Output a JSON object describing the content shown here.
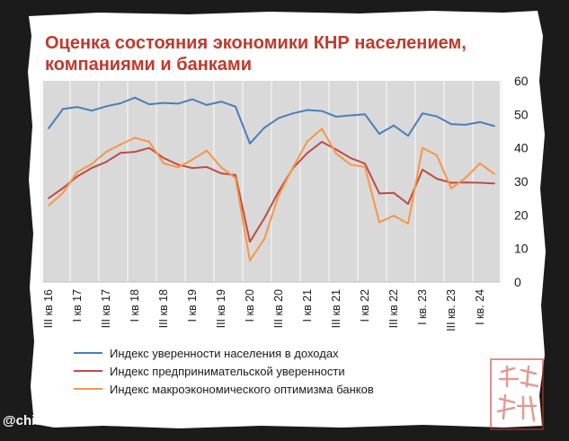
{
  "title": "Оценка состояния экономики КНР населением,\nкомпаниями и банками",
  "watermark": "@chinogram",
  "colors": {
    "background": "#d9d9d9",
    "grid": "#f2f2f2",
    "title": "#c0392b",
    "seal": "#c0392b"
  },
  "chart_data": {
    "type": "line",
    "xlabel": "",
    "ylabel": "",
    "ylim": [
      0,
      60
    ],
    "yticks": [
      0,
      10,
      20,
      30,
      40,
      50,
      60
    ],
    "y_axis_side": "right",
    "grid": "vertical",
    "legend_position": "bottom-left",
    "tick_labels": [
      "III кв 16",
      "I кв 17",
      "III кв 17",
      "I кв 18",
      "III кв 18",
      "I кв 19",
      "III кв 19",
      "I кв 20",
      "III кв 20",
      "I кв 21",
      "III кв 21",
      "I кв 22",
      "III кв 22",
      "I кв. 23",
      "III кв. 23",
      "I кв. 24"
    ],
    "series": [
      {
        "name": "Индекс уверенности населения в доходах",
        "color": "#4a7ebb",
        "values": [
          45.8,
          51.6,
          52.2,
          51.1,
          52.4,
          53.3,
          55.0,
          53.0,
          53.4,
          53.2,
          54.5,
          52.8,
          53.8,
          52.3,
          41.3,
          46.0,
          48.9,
          50.3,
          51.3,
          51.0,
          49.3,
          49.7,
          50.0,
          44.2,
          46.7,
          43.6,
          50.3,
          49.4,
          47.1,
          46.9,
          47.7,
          46.5
        ]
      },
      {
        "name": "Индекс предпринимательской уверенности",
        "color": "#be4b48",
        "values": [
          25.0,
          28.0,
          31.5,
          34.0,
          35.8,
          38.5,
          38.8,
          40.0,
          37.0,
          35.0,
          34.0,
          34.3,
          32.4,
          31.9,
          12.0,
          19.0,
          27.0,
          34.0,
          38.5,
          41.8,
          39.5,
          37.0,
          35.3,
          26.4,
          26.6,
          23.3,
          33.5,
          30.8,
          29.6,
          29.7,
          29.6,
          29.4
        ]
      },
      {
        "name": "Индекс макроэкономического оптимизма банков",
        "color": "#f79646",
        "values": [
          22.8,
          26.6,
          32.8,
          35.2,
          38.8,
          41.0,
          43.0,
          41.8,
          35.4,
          34.2,
          36.5,
          39.2,
          34.2,
          31.0,
          6.4,
          12.8,
          25.8,
          34.2,
          42.0,
          45.7,
          38.3,
          35.0,
          34.3,
          17.8,
          19.8,
          17.4,
          40.0,
          37.8,
          27.9,
          31.1,
          35.4,
          32.2
        ]
      }
    ]
  }
}
